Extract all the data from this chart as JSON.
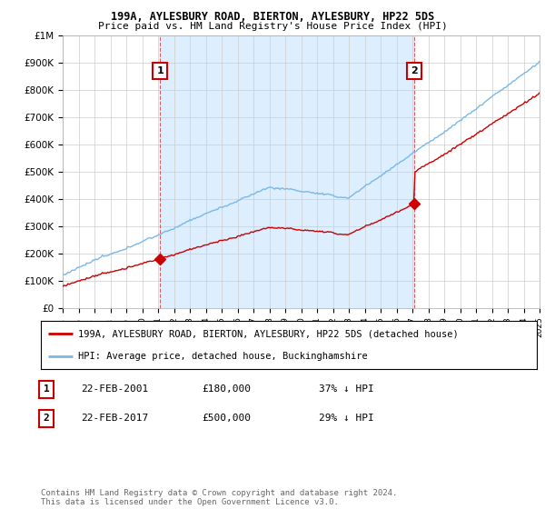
{
  "title1": "199A, AYLESBURY ROAD, BIERTON, AYLESBURY, HP22 5DS",
  "title2": "Price paid vs. HM Land Registry's House Price Index (HPI)",
  "ylim": [
    0,
    1000000
  ],
  "yticks": [
    0,
    100000,
    200000,
    300000,
    400000,
    500000,
    600000,
    700000,
    800000,
    900000,
    1000000
  ],
  "ytick_labels": [
    "£0",
    "£100K",
    "£200K",
    "£300K",
    "£400K",
    "£500K",
    "£600K",
    "£700K",
    "£800K",
    "£900K",
    "£1M"
  ],
  "hpi_color": "#7ab8e8",
  "price_color": "#cc0000",
  "shade_color": "#ddeeff",
  "t1": 2001.12,
  "t2": 2017.12,
  "price1": 180000,
  "price2": 500000,
  "legend_line1": "199A, AYLESBURY ROAD, BIERTON, AYLESBURY, HP22 5DS (detached house)",
  "legend_line2": "HPI: Average price, detached house, Buckinghamshire",
  "table_row1": [
    "1",
    "22-FEB-2001",
    "£180,000",
    "37% ↓ HPI"
  ],
  "table_row2": [
    "2",
    "22-FEB-2017",
    "£500,000",
    "29% ↓ HPI"
  ],
  "footnote": "Contains HM Land Registry data © Crown copyright and database right 2024.\nThis data is licensed under the Open Government Licence v3.0.",
  "bg_color": "#ffffff",
  "grid_color": "#cccccc",
  "xstart": 1995,
  "xend": 2025
}
